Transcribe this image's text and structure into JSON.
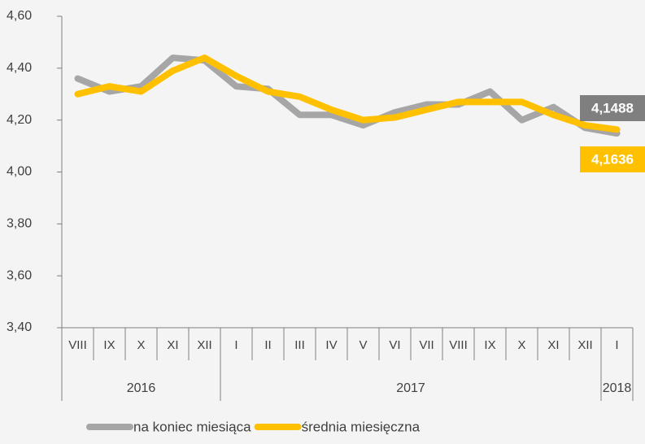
{
  "chart_data": {
    "type": "line",
    "categories": [
      "VIII",
      "IX",
      "X",
      "XI",
      "XII",
      "I",
      "II",
      "III",
      "IV",
      "V",
      "VI",
      "VII",
      "VIII",
      "IX",
      "X",
      "XI",
      "XII",
      "I"
    ],
    "x_groups": [
      {
        "label": "2016",
        "count": 5
      },
      {
        "label": "2017",
        "count": 12
      },
      {
        "label": "2018",
        "count": 1
      }
    ],
    "series": [
      {
        "name": "na koniec miesiąca",
        "color": "#a6a6a6",
        "values": [
          4.36,
          4.31,
          4.33,
          4.44,
          4.43,
          4.33,
          4.32,
          4.22,
          4.22,
          4.18,
          4.23,
          4.26,
          4.26,
          4.31,
          4.2,
          4.25,
          4.17,
          4.1488
        ],
        "value_labels": [
          null,
          null,
          null,
          null,
          null,
          null,
          null,
          null,
          null,
          null,
          null,
          null,
          null,
          null,
          null,
          null,
          null,
          "4,1488"
        ]
      },
      {
        "name": "średnia miesięczna",
        "color": "#ffc000",
        "values": [
          4.3,
          4.33,
          4.31,
          4.39,
          4.44,
          4.37,
          4.31,
          4.29,
          4.24,
          4.2,
          4.21,
          4.24,
          4.27,
          4.27,
          4.27,
          4.22,
          4.18,
          4.1636
        ],
        "value_labels": [
          null,
          null,
          null,
          null,
          null,
          null,
          null,
          null,
          null,
          null,
          null,
          null,
          null,
          null,
          null,
          null,
          null,
          "4,1636"
        ]
      }
    ],
    "ylim": [
      3.4,
      4.6
    ],
    "yticks": [
      {
        "value": 3.4,
        "label": "3,40"
      },
      {
        "value": 3.6,
        "label": "3,60"
      },
      {
        "value": 3.8,
        "label": "3,80"
      },
      {
        "value": 4.0,
        "label": "4,00"
      },
      {
        "value": 4.2,
        "label": "4,20"
      },
      {
        "value": 4.4,
        "label": "4,40"
      },
      {
        "value": 4.6,
        "label": "4,60"
      }
    ],
    "legend": "bottom"
  }
}
